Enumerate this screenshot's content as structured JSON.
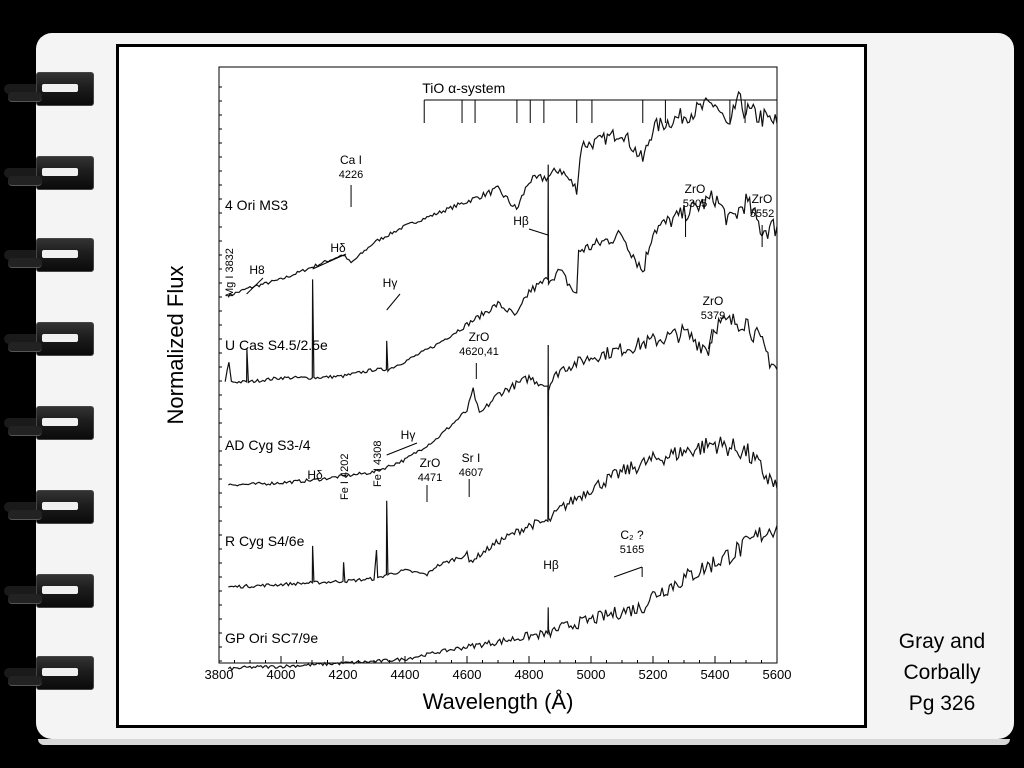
{
  "caption": {
    "line1": "Gray and",
    "line2": "Corbally",
    "line3": "Pg 326"
  },
  "chart_data": {
    "type": "line",
    "title": "",
    "xlabel": "Wavelength (Å)",
    "ylabel": "Normalized Flux",
    "xlim": [
      3800,
      5600
    ],
    "xticks": [
      3800,
      4000,
      4200,
      4400,
      4600,
      4800,
      5000,
      5200,
      5400,
      5600
    ],
    "grid": false,
    "band_system": {
      "label": "TiO α-system",
      "heads": [
        4462,
        4584,
        4626,
        4761,
        4804,
        4848,
        4954,
        5003,
        5167,
        5240,
        5448,
        5497
      ]
    },
    "series": [
      {
        "name": "4 Ori  MS3",
        "points": [
          [
            3830,
            4.1
          ],
          [
            3900,
            4.2
          ],
          [
            4000,
            4.3
          ],
          [
            4100,
            4.45
          ],
          [
            4200,
            4.6
          ],
          [
            4226,
            4.5
          ],
          [
            4300,
            4.75
          ],
          [
            4400,
            4.95
          ],
          [
            4500,
            5.1
          ],
          [
            4600,
            5.25
          ],
          [
            4700,
            5.4
          ],
          [
            4760,
            5.15
          ],
          [
            4800,
            5.5
          ],
          [
            4862,
            5.55
          ],
          [
            4900,
            5.65
          ],
          [
            4954,
            5.4
          ],
          [
            4970,
            5.95
          ],
          [
            5000,
            5.95
          ],
          [
            5100,
            6.1
          ],
          [
            5167,
            5.75
          ],
          [
            5200,
            6.15
          ],
          [
            5300,
            6.3
          ],
          [
            5400,
            6.45
          ],
          [
            5448,
            6.1
          ],
          [
            5470,
            6.5
          ],
          [
            5500,
            6.35
          ],
          [
            5600,
            6.2
          ]
        ],
        "annotations": [
          {
            "text": "Ca I",
            "text2": "4226",
            "x": 4226,
            "tick": true
          },
          {
            "text": "ZrO",
            "text2": "5305",
            "x": 5305,
            "tick": true
          },
          {
            "text": "ZrO",
            "text2": "5552",
            "x": 5552,
            "tick": true
          }
        ]
      },
      {
        "name": "U Cas  S4.5/2.5e",
        "points": [
          [
            3820,
            3.05
          ],
          [
            3832,
            3.3
          ],
          [
            3840,
            3.05
          ],
          [
            3889,
            3.05
          ],
          [
            3890,
            3.45
          ],
          [
            3895,
            3.05
          ],
          [
            4000,
            3.1
          ],
          [
            4101,
            3.1
          ],
          [
            4102,
            4.3
          ],
          [
            4106,
            3.1
          ],
          [
            4200,
            3.12
          ],
          [
            4300,
            3.2
          ],
          [
            4340,
            3.2
          ],
          [
            4341,
            3.55
          ],
          [
            4345,
            3.2
          ],
          [
            4400,
            3.3
          ],
          [
            4500,
            3.5
          ],
          [
            4600,
            3.75
          ],
          [
            4700,
            4.0
          ],
          [
            4760,
            3.85
          ],
          [
            4800,
            4.15
          ],
          [
            4861,
            4.3
          ],
          [
            4862,
            5.7
          ],
          [
            4863,
            4.3
          ],
          [
            4900,
            4.4
          ],
          [
            4954,
            4.1
          ],
          [
            4960,
            4.65
          ],
          [
            5000,
            4.7
          ],
          [
            5100,
            4.85
          ],
          [
            5167,
            4.4
          ],
          [
            5200,
            4.9
          ],
          [
            5300,
            5.1
          ],
          [
            5400,
            5.3
          ],
          [
            5448,
            5.0
          ],
          [
            5500,
            5.25
          ],
          [
            5552,
            4.9
          ],
          [
            5600,
            4.95
          ]
        ],
        "annotations": [
          {
            "text": "Mg I 3832",
            "text2": "",
            "x": 3832,
            "tick": false
          },
          {
            "text": "H8",
            "text2": "",
            "x": 3889,
            "tick": true
          },
          {
            "text": "Hδ",
            "text2": "",
            "x": 4102,
            "tick": true
          },
          {
            "text": "Hγ",
            "text2": "",
            "x": 4341,
            "tick": true
          },
          {
            "text": "Hβ",
            "text2": "",
            "x": 4861,
            "tick": true
          }
        ]
      },
      {
        "name": "AD Cyg  S3-/4",
        "points": [
          [
            3830,
            1.8
          ],
          [
            3900,
            1.8
          ],
          [
            4000,
            1.82
          ],
          [
            4100,
            1.85
          ],
          [
            4200,
            1.9
          ],
          [
            4300,
            1.95
          ],
          [
            4400,
            2.1
          ],
          [
            4500,
            2.35
          ],
          [
            4600,
            2.7
          ],
          [
            4620,
            2.95
          ],
          [
            4640,
            2.65
          ],
          [
            4700,
            2.9
          ],
          [
            4800,
            3.1
          ],
          [
            4861,
            3.0
          ],
          [
            4862,
            1.5
          ],
          [
            4863,
            3.0
          ],
          [
            4900,
            3.2
          ],
          [
            5000,
            3.35
          ],
          [
            5100,
            3.45
          ],
          [
            5200,
            3.55
          ],
          [
            5300,
            3.65
          ],
          [
            5379,
            3.45
          ],
          [
            5400,
            3.75
          ],
          [
            5500,
            3.8
          ],
          [
            5600,
            3.2
          ]
        ],
        "annotations": [
          {
            "text": "ZrO",
            "text2": "4620,41",
            "x": 4630,
            "tick": true
          },
          {
            "text": "ZrO",
            "text2": "5379",
            "x": 5379,
            "tick": true
          }
        ]
      },
      {
        "name": "R Cyg  S4/6e",
        "points": [
          [
            3830,
            0.55
          ],
          [
            3900,
            0.56
          ],
          [
            4000,
            0.58
          ],
          [
            4101,
            0.6
          ],
          [
            4102,
            1.05
          ],
          [
            4106,
            0.6
          ],
          [
            4200,
            0.62
          ],
          [
            4202,
            0.85
          ],
          [
            4206,
            0.62
          ],
          [
            4300,
            0.65
          ],
          [
            4308,
            1.0
          ],
          [
            4312,
            0.65
          ],
          [
            4340,
            0.7
          ],
          [
            4341,
            1.6
          ],
          [
            4345,
            0.7
          ],
          [
            4400,
            0.75
          ],
          [
            4471,
            0.7
          ],
          [
            4500,
            0.8
          ],
          [
            4600,
            0.95
          ],
          [
            4607,
            0.85
          ],
          [
            4700,
            1.1
          ],
          [
            4800,
            1.3
          ],
          [
            4861,
            1.35
          ],
          [
            4862,
            3.5
          ],
          [
            4863,
            1.35
          ],
          [
            4900,
            1.5
          ],
          [
            5000,
            1.75
          ],
          [
            5100,
            1.95
          ],
          [
            5200,
            2.1
          ],
          [
            5300,
            2.2
          ],
          [
            5400,
            2.3
          ],
          [
            5500,
            2.2
          ],
          [
            5600,
            1.75
          ]
        ],
        "annotations": [
          {
            "text": "Hδ",
            "text2": "",
            "x": 4102,
            "tick": false
          },
          {
            "text": "Fe I 4202",
            "text2": "",
            "x": 4202,
            "tick": false
          },
          {
            "text": "Fe I 4308",
            "text2": "",
            "x": 4308,
            "tick": false
          },
          {
            "text": "Hγ",
            "text2": "",
            "x": 4341,
            "tick": true
          },
          {
            "text": "ZrO",
            "text2": "4471",
            "x": 4471,
            "tick": true
          },
          {
            "text": "Sr I",
            "text2": "4607",
            "x": 4607,
            "tick": true
          }
        ]
      },
      {
        "name": "GP Ori  SC7/9e",
        "points": [
          [
            3830,
            -0.45
          ],
          [
            3900,
            -0.43
          ],
          [
            4000,
            -0.42
          ],
          [
            4100,
            -0.4
          ],
          [
            4200,
            -0.38
          ],
          [
            4300,
            -0.36
          ],
          [
            4400,
            -0.33
          ],
          [
            4500,
            -0.25
          ],
          [
            4600,
            -0.18
          ],
          [
            4700,
            -0.12
          ],
          [
            4800,
            -0.05
          ],
          [
            4861,
            -0.02
          ],
          [
            4862,
            0.3
          ],
          [
            4863,
            -0.02
          ],
          [
            4900,
            0.05
          ],
          [
            5000,
            0.15
          ],
          [
            5100,
            0.25
          ],
          [
            5165,
            0.3
          ],
          [
            5200,
            0.45
          ],
          [
            5300,
            0.65
          ],
          [
            5400,
            0.85
          ],
          [
            5500,
            1.05
          ],
          [
            5550,
            1.2
          ],
          [
            5600,
            1.3
          ]
        ],
        "annotations": [
          {
            "text": "Hβ",
            "text2": "",
            "x": 4861,
            "tick": false
          },
          {
            "text": "C₂ ?",
            "text2": "5165",
            "x": 5165,
            "tick": true
          }
        ]
      }
    ]
  }
}
